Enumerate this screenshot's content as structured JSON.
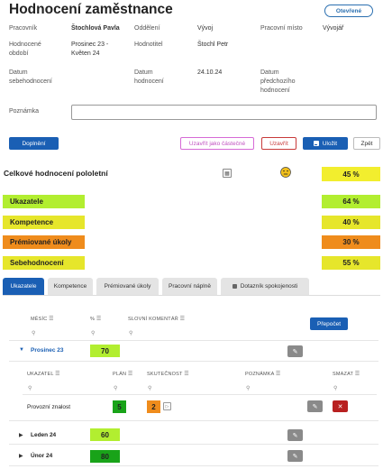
{
  "header": {
    "title": "Hodnocení zaměstnance",
    "status": "Otevřené"
  },
  "info": {
    "employee_label": "Pracovník",
    "employee_value": "Štochlová Pavla",
    "department_label": "Oddělení",
    "department_value": "Vývoj",
    "workplace_label": "Pracovní místo",
    "workplace_value": "Vývojář",
    "period_label": "Hodnocené období",
    "period_value": "Prosinec 23 - Květen 24",
    "evaluator_label": "Hodnotitel",
    "evaluator_value": "Štochl Petr",
    "self_date_label": "Datum sebehodnocení",
    "eval_date_label": "Datum hodnocení",
    "eval_date_value": "24.10.24",
    "prev_date_label": "Datum předchozího hodnocení",
    "note_label": "Poznámka"
  },
  "actions": {
    "fill": "Doplnění",
    "close_partial": "Uzavřít jako částečné",
    "close": "Uzavřít",
    "save": "Uložit",
    "back": "Zpět"
  },
  "summary": {
    "title": "Celkové hodnocení pololetní",
    "value": "45 %"
  },
  "bars": [
    {
      "label": "Ukazatele",
      "value": "64 %"
    },
    {
      "label": "Kompetence",
      "value": "40 %"
    },
    {
      "label": "Prémiované úkoly",
      "value": "30 %"
    },
    {
      "label": "Sebehodnocení",
      "value": "55 %"
    }
  ],
  "bar_colors": {
    "green": "#b2ee30",
    "yellow": "#e6e62b",
    "orange": "#ef8c1c",
    "header_yellow": "#f2ee2e"
  },
  "tabs": [
    "Ukazatele",
    "Kompetence",
    "Prémiované úkoly",
    "Pracovní náplně",
    "Dotazník spokojenosti"
  ],
  "grid": {
    "col_month": "MĚSÍC",
    "col_pct": "%",
    "col_comment": "SLOVNÍ KOMENTÁŘ",
    "recalc": "Přepočet",
    "months": [
      {
        "name": "Prosinec 23",
        "value": "70"
      },
      {
        "name": "Leden 24",
        "value": "60"
      },
      {
        "name": "Únor 24",
        "value": "80"
      }
    ],
    "sub": {
      "col_indicator": "UKAZATEL",
      "col_plan": "PLÁN",
      "col_actual": "SKUTEČNOST",
      "col_note": "POZNÁMKA",
      "col_delete": "SMAZAT",
      "row": {
        "indicator": "Provozní znalost",
        "plan": "5",
        "actual": "2"
      }
    }
  }
}
